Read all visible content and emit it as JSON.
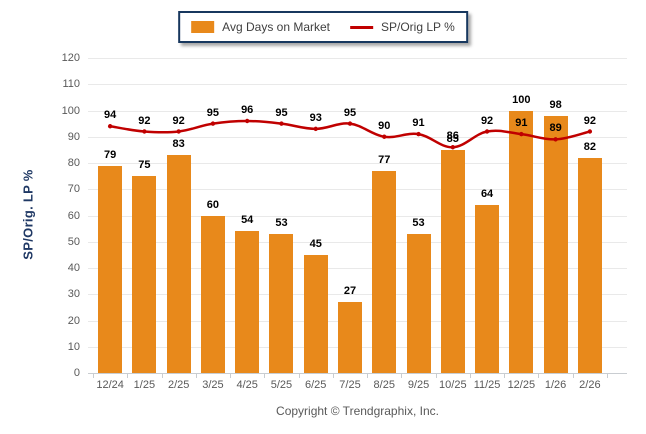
{
  "legend": {
    "bar_label": "Avg Days on Market",
    "line_label": "SP/Orig LP %"
  },
  "y_axis": {
    "title": "SP/Orig. LP %",
    "min": 0,
    "max": 120,
    "step": 10
  },
  "footer": {
    "copyright": "Copyright © Trendgraphix, Inc."
  },
  "colors": {
    "bar": "#E8891B",
    "line": "#C00000",
    "grid": "#E9E9E9",
    "axis_line": "#C9CDD1",
    "axis_text": "#595959",
    "value_text": "#000000",
    "y_title": "#1F3864",
    "legend_border": "#17375E",
    "copyright_text": "#595959"
  },
  "chart_data": {
    "type": "combo",
    "categories": [
      "12/24",
      "1/25",
      "2/25",
      "3/25",
      "4/25",
      "5/25",
      "6/25",
      "7/25",
      "8/25",
      "9/25",
      "10/25",
      "11/25",
      "12/25",
      "1/26",
      "2/26"
    ],
    "series": [
      {
        "name": "Avg Days on Market",
        "type": "bar",
        "color": "#E8891B",
        "values": [
          79,
          75,
          83,
          60,
          54,
          53,
          45,
          27,
          77,
          53,
          85,
          64,
          100,
          98,
          82
        ]
      },
      {
        "name": "SP/Orig LP %",
        "type": "line",
        "color": "#C00000",
        "values": [
          94,
          92,
          92,
          95,
          96,
          95,
          93,
          95,
          90,
          91,
          86,
          92,
          91,
          89,
          92
        ]
      }
    ],
    "title": "",
    "xlabel": "",
    "ylabel": "SP/Orig. LP %",
    "ylim": [
      0,
      120
    ],
    "ytick_step": 10,
    "grid": true,
    "value_labels": true,
    "legend_position": "top-center"
  }
}
